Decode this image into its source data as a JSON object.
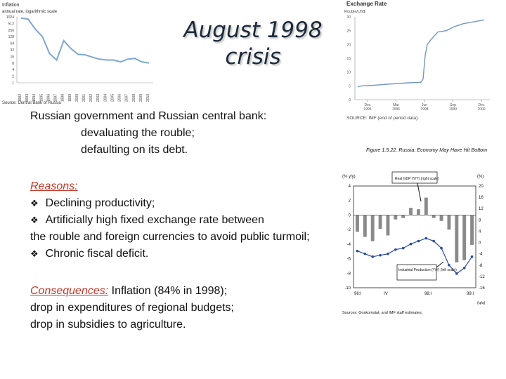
{
  "slide": {
    "title_line1": "August 1998",
    "title_line2": "crisis",
    "intro_line1": "Russian government and Russian central bank:",
    "intro_line2": "devaluating the rouble;",
    "intro_line3": "defaulting on its debt.",
    "reasons_label": "Reasons:",
    "reasons": [
      "Declining productivity;",
      "Artificially high fixed exchange rate between"
    ],
    "reasons_continuation": "the rouble and foreign currencies to avoid public turmoil;",
    "reasons_last": "Chronic fiscal deficit.",
    "consequences_label": "Consequences:",
    "consequences_line1_rest": " Inflation (84% in 1998);",
    "consequences_line2": "drop in expenditures of regional budgets;",
    "consequences_line3": "drop in subsidies to agriculture.",
    "bullet_icon": "❖"
  },
  "chart_data": [
    {
      "type": "line",
      "title": "Inflation",
      "subtitle": "annual rate, logarithmic scale",
      "source": "Source: Central Bank of Russia",
      "y_ticks": [
        "1024",
        "512",
        "256",
        "128",
        "64",
        "32",
        "16",
        "8",
        "4",
        "2",
        "1"
      ],
      "x": [
        "1992",
        "1993",
        "1994",
        "1995",
        "1996",
        "1997",
        "1998",
        "1999",
        "2000",
        "2001",
        "2002",
        "2003",
        "2004",
        "2005",
        "2006",
        "2007",
        "2008",
        "2009",
        "2010"
      ],
      "values": [
        900,
        800,
        280,
        130,
        22,
        11,
        84,
        37,
        20,
        19,
        15,
        12,
        11,
        11,
        9,
        12,
        13,
        9,
        8
      ],
      "color": "#7ea6d3"
    },
    {
      "type": "line",
      "title": "Exchange Rate",
      "ylabel": "Rouble/US$",
      "source": "SOURCE: IMF (end of period data).",
      "y_ticks": [
        "30",
        "25",
        "20",
        "15",
        "10",
        "5",
        "0"
      ],
      "ylim": [
        0,
        30
      ],
      "x_ticks": [
        [
          "Dec",
          "1995"
        ],
        [
          "Mar",
          "1996"
        ],
        [
          "Jun",
          "1998"
        ],
        [
          "Sep",
          "1999"
        ],
        [
          "Dec",
          "2000"
        ]
      ],
      "series": [
        {
          "t": [
            0,
            2,
            5,
            9,
            14,
            20,
            24,
            28,
            30,
            31,
            32,
            33,
            35,
            38,
            42,
            46,
            50,
            55,
            60
          ],
          "values": [
            4.7,
            5.0,
            5.1,
            5.3,
            5.6,
            5.9,
            6.1,
            6.2,
            6.3,
            7.5,
            16.0,
            20.0,
            22.0,
            24.5,
            25.0,
            26.5,
            27.5,
            28.2,
            28.9
          ]
        }
      ],
      "color": "#6f96c5"
    },
    {
      "type": "bar",
      "title": "Figure 1.5.22. Russia: Economy May Have Hit Bottom",
      "ylabel_left": "(% y/y)",
      "ylabel_right": "(%)",
      "y_ticks_left": [
        "4",
        "2",
        "0",
        "-2",
        "-4",
        "-6",
        "-8",
        "-10"
      ],
      "y_ticks_right": [
        "20",
        "16",
        "12",
        "8",
        "4",
        "0",
        "-4",
        "-8",
        "-12",
        "-16"
      ],
      "x_ticks": [
        "96:I",
        "",
        "IV",
        "",
        "",
        "98:I",
        "",
        "",
        "99:I"
      ],
      "xlabel": "(q/q)",
      "annotation_line": "Real GDP (Y/Y) (right scale)",
      "annotation_bar": "Industrial Production (Y/Y) (left scale)",
      "source": "Sources: Goskomstat; and IMF staff estimates.",
      "bar_values": [
        -2.3,
        -3.0,
        -3.6,
        -1.9,
        -2.8,
        -0.6,
        -0.4,
        1.0,
        0.8,
        2.4,
        -0.4,
        -0.8,
        -2.0,
        -6.5,
        -6.2,
        -4.1
      ],
      "line_values": [
        -3.0,
        -4.0,
        -5.0,
        -4.5,
        -4.0,
        -2.5,
        -2.0,
        -0.5,
        0.5,
        1.5,
        0.5,
        -2.0,
        -8.0,
        -11.0,
        -9.0,
        -5.0
      ],
      "bar_color": "#8a8a8a",
      "line_color": "#2b4aa0"
    }
  ]
}
